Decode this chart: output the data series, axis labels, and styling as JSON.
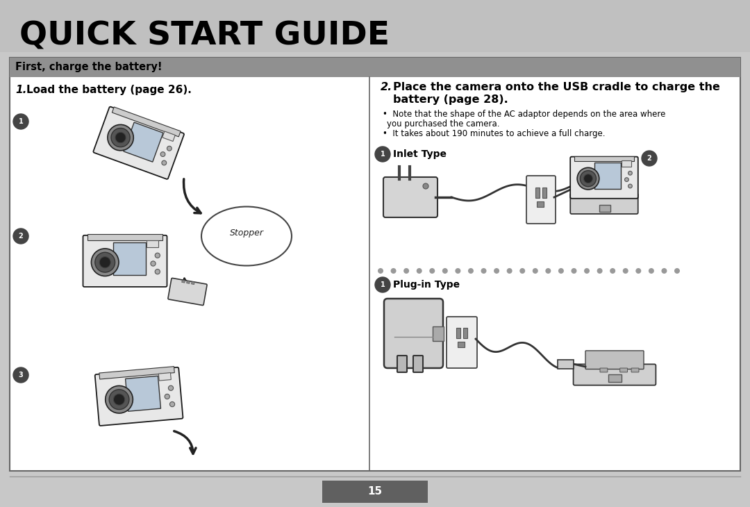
{
  "title": "QUICK START GUIDE",
  "title_bg": "#c0c0c0",
  "title_color": "#000000",
  "title_fontsize": 34,
  "section_header": "First, charge the battery!",
  "section_header_bg": "#909090",
  "section_header_color": "#000000",
  "main_bg": "#ffffff",
  "outer_bg": "#c8c8c8",
  "border_color": "#666666",
  "step1_label": "1.",
  "step1_text": "Load the battery (page 26).",
  "step2_label": "2.",
  "step2_line1": "Place the camera onto the USB cradle to charge the",
  "step2_line2": "battery (page 28).",
  "bullet1": "•  Note that the shape of the AC adaptor depends on the area where",
  "bullet1b": "   you purchased the camera.",
  "bullet2": "•  It takes about 190 minutes to achieve a full charge.",
  "inlet_label": "Inlet Type",
  "plugin_label": "Plug-in Type",
  "stopper_label": "Stopper",
  "page_number": "15",
  "page_num_bg": "#606060",
  "page_num_color": "#ffffff"
}
